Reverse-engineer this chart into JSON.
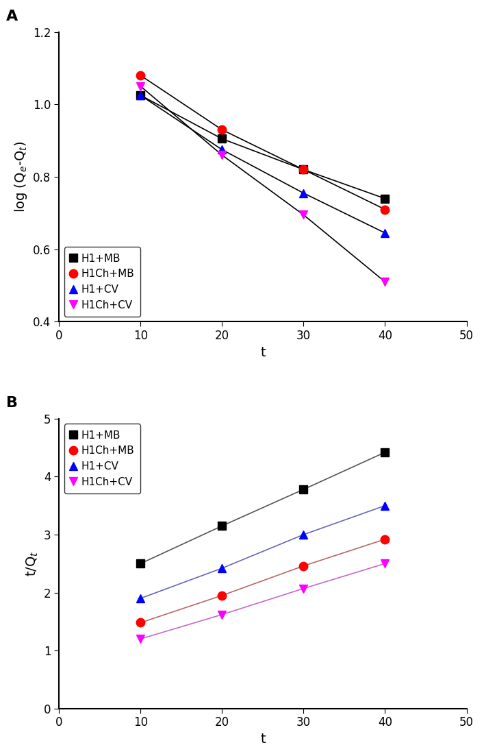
{
  "panel_A": {
    "t": [
      10,
      20,
      30,
      40
    ],
    "series": [
      {
        "label": "H1+MB",
        "color": "black",
        "line_color": "black",
        "marker": "s",
        "y": [
          1.025,
          0.905,
          0.82,
          0.74
        ]
      },
      {
        "label": "H1Ch+MB",
        "color": "red",
        "line_color": "black",
        "marker": "o",
        "y": [
          1.08,
          0.93,
          0.82,
          0.71
        ]
      },
      {
        "label": "H1+CV",
        "color": "blue",
        "line_color": "black",
        "marker": "^",
        "y": [
          1.025,
          0.875,
          0.755,
          0.645
        ]
      },
      {
        "label": "H1Ch+CV",
        "color": "magenta",
        "line_color": "black",
        "marker": "v",
        "y": [
          1.05,
          0.86,
          0.695,
          0.51
        ]
      }
    ],
    "xlabel": "t",
    "ylabel": "log (Q$_e$-Q$_t$)",
    "xlim": [
      0,
      50
    ],
    "ylim": [
      0.4,
      1.2
    ],
    "yticks": [
      0.4,
      0.6,
      0.8,
      1.0,
      1.2
    ],
    "xticks": [
      0,
      10,
      20,
      30,
      40,
      50
    ],
    "panel_label": "A",
    "legend_loc": "lower left"
  },
  "panel_B": {
    "t": [
      10,
      20,
      30,
      40
    ],
    "series": [
      {
        "label": "H1+MB",
        "color": "black",
        "line_color": "#555555",
        "marker": "s",
        "y": [
          2.5,
          3.15,
          3.78,
          4.42
        ]
      },
      {
        "label": "H1Ch+MB",
        "color": "red",
        "line_color": "#bb6666",
        "marker": "o",
        "y": [
          1.48,
          1.95,
          2.46,
          2.92
        ]
      },
      {
        "label": "H1+CV",
        "color": "blue",
        "line_color": "#6666bb",
        "marker": "^",
        "y": [
          1.9,
          2.42,
          3.0,
          3.5
        ]
      },
      {
        "label": "H1Ch+CV",
        "color": "magenta",
        "line_color": "#cc66cc",
        "marker": "v",
        "y": [
          1.2,
          1.62,
          2.07,
          2.5
        ]
      }
    ],
    "xlabel": "t",
    "ylabel": "t/Q$_t$",
    "xlim": [
      0,
      50
    ],
    "ylim": [
      0,
      5
    ],
    "yticks": [
      0,
      1,
      2,
      3,
      4,
      5
    ],
    "xticks": [
      0,
      10,
      20,
      30,
      40,
      50
    ],
    "panel_label": "B",
    "legend_loc": "upper left"
  },
  "marker_size": 9,
  "line_width": 1.2,
  "font_size_label": 14,
  "font_size_tick": 12,
  "font_size_legend": 11,
  "font_size_panel": 16
}
